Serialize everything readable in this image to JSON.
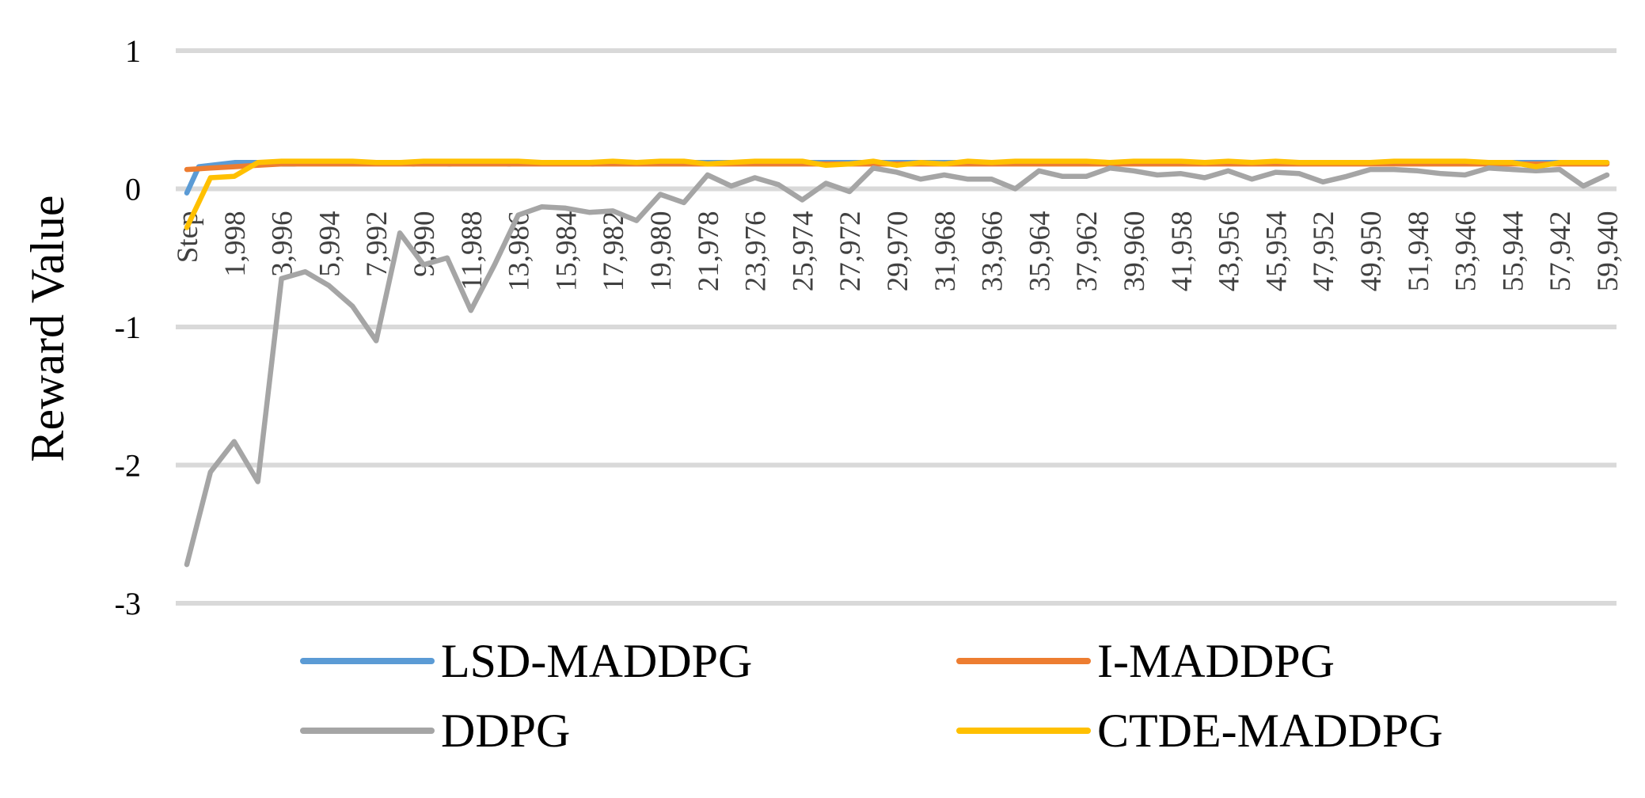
{
  "chart_data": {
    "type": "line",
    "ylabel": "Reward Value",
    "xlabel": "",
    "ylim": [
      -3,
      1
    ],
    "y_ticks": [
      "1",
      "0",
      "-1",
      "-2",
      "-3"
    ],
    "y_tick_values": [
      1,
      0,
      -1,
      -2,
      -3
    ],
    "grid": "horizontal",
    "legend_position": "bottom",
    "x_tick_labels": [
      "Step",
      "1,998",
      "3,996",
      "5,994",
      "7,992",
      "9,990",
      "11,988",
      "13,986",
      "15,984",
      "17,982",
      "19,980",
      "21,978",
      "23,976",
      "25,974",
      "27,972",
      "29,970",
      "31,968",
      "33,966",
      "35,964",
      "37,962",
      "39,960",
      "41,958",
      "43,956",
      "45,954",
      "47,952",
      "49,950",
      "51,948",
      "53,946",
      "55,944",
      "57,942",
      "59,940"
    ],
    "series": [
      {
        "name": "LSD-MADDPG",
        "color": "#5B9BD5",
        "values": [
          -0.03,
          0.16,
          0.17,
          0.18,
          0.19,
          0.19,
          0.19,
          0.19,
          0.18,
          0.18,
          0.19,
          0.19,
          0.19,
          0.19,
          0.19,
          0.19,
          0.19,
          0.19,
          0.19,
          0.18,
          0.19,
          0.19,
          0.18,
          0.19,
          0.19,
          0.19,
          0.19,
          0.18,
          0.19,
          0.19,
          0.19,
          0.19,
          0.19,
          0.19,
          0.18,
          0.19,
          0.19,
          0.19,
          0.19,
          0.19,
          0.19,
          0.19,
          0.19,
          0.19,
          0.19,
          0.19,
          0.19,
          0.19,
          0.19,
          0.19,
          0.19,
          0.19,
          0.19,
          0.19,
          0.19,
          0.19,
          0.19,
          0.19,
          0.19,
          0.19,
          0.19,
          0.19,
          0.19,
          0.19,
          0.19,
          0.19,
          0.19,
          0.19,
          0.19,
          0.19,
          0.19,
          0.19,
          0.19,
          0.19,
          0.19,
          0.19,
          0.19,
          0.19,
          0.19,
          0.19,
          0.19,
          0.19,
          0.19,
          0.19,
          0.19,
          0.19,
          0.19,
          0.19,
          0.19,
          0.19,
          0.19,
          0.19,
          0.19,
          0.19,
          0.19,
          0.19,
          0.19,
          0.19,
          0.19,
          0.19,
          0.19,
          0.19,
          0.19,
          0.19,
          0.19,
          0.19,
          0.19,
          0.19,
          0.19,
          0.19,
          0.19,
          0.19,
          0.19,
          0.19,
          0.19,
          0.19,
          0.19,
          0.19,
          0.19,
          0.19
        ]
      },
      {
        "name": "I-MADDPG",
        "color": "#ED7D31",
        "values": [
          0.14,
          0.15,
          0.16,
          0.17,
          0.18,
          0.18,
          0.18,
          0.18,
          0.18,
          0.18,
          0.18,
          0.18,
          0.18,
          0.18,
          0.18,
          0.18,
          0.18,
          0.18,
          0.18,
          0.18,
          0.18,
          0.18,
          0.18,
          0.18,
          0.18,
          0.18,
          0.18,
          0.18,
          0.18,
          0.18,
          0.18,
          0.18,
          0.18,
          0.18,
          0.18,
          0.18,
          0.18,
          0.18,
          0.18,
          0.18,
          0.18,
          0.18,
          0.18,
          0.18,
          0.18,
          0.18,
          0.18,
          0.18,
          0.18,
          0.18,
          0.18,
          0.18,
          0.18,
          0.18,
          0.18,
          0.18,
          0.18,
          0.18,
          0.18,
          0.18,
          0.18
        ]
      },
      {
        "name": "DDPG",
        "color": "#A5A5A5",
        "values": [
          -2.72,
          -2.05,
          -1.83,
          -2.12,
          -0.65,
          -0.6,
          -0.7,
          -0.85,
          -1.1,
          -0.32,
          -0.55,
          -0.5,
          -0.88,
          -0.55,
          -0.19,
          -0.13,
          -0.14,
          -0.17,
          -0.16,
          -0.23,
          -0.04,
          -0.1,
          0.1,
          0.02,
          0.08,
          0.03,
          -0.08,
          0.04,
          -0.02,
          0.15,
          0.12,
          0.07,
          0.1,
          0.07,
          0.07,
          0.0,
          0.13,
          0.09,
          0.09,
          0.15,
          0.13,
          0.1,
          0.11,
          0.08,
          0.13,
          0.07,
          0.12,
          0.11,
          0.05,
          0.09,
          0.14,
          0.14,
          0.13,
          0.11,
          0.1,
          0.15,
          0.14,
          0.13,
          0.14,
          0.02,
          0.1
        ]
      },
      {
        "name": "CTDE-MADDPG",
        "color": "#FFC000",
        "values": [
          -0.28,
          0.08,
          0.09,
          0.19,
          0.2,
          0.2,
          0.2,
          0.2,
          0.19,
          0.19,
          0.2,
          0.2,
          0.2,
          0.2,
          0.2,
          0.19,
          0.19,
          0.19,
          0.2,
          0.19,
          0.2,
          0.2,
          0.18,
          0.19,
          0.2,
          0.2,
          0.2,
          0.17,
          0.18,
          0.2,
          0.17,
          0.19,
          0.18,
          0.2,
          0.19,
          0.2,
          0.2,
          0.2,
          0.2,
          0.19,
          0.2,
          0.2,
          0.2,
          0.19,
          0.2,
          0.19,
          0.2,
          0.19,
          0.19,
          0.19,
          0.19,
          0.2,
          0.2,
          0.2,
          0.2,
          0.19,
          0.19,
          0.16,
          0.19,
          0.19,
          0.19
        ]
      }
    ]
  }
}
